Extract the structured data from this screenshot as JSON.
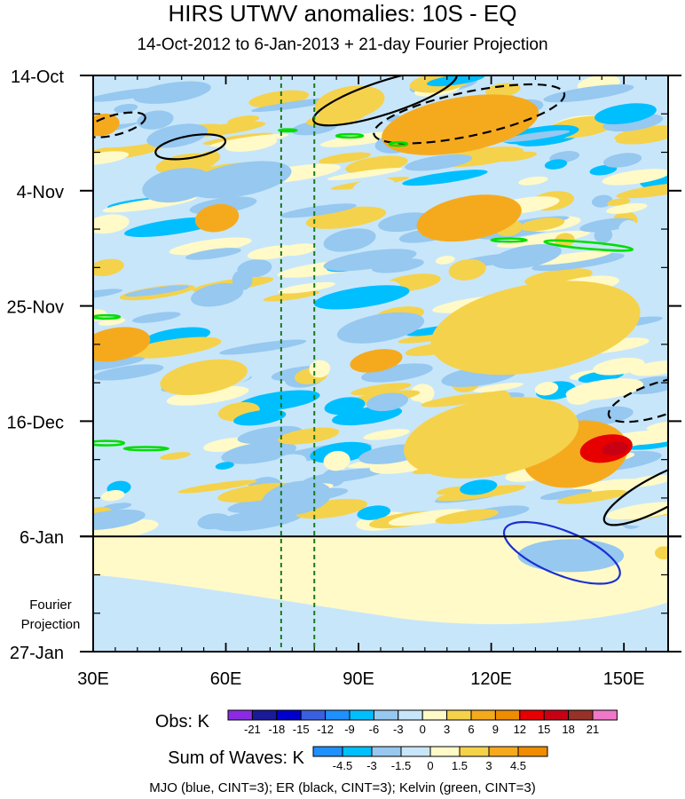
{
  "chart_data": {
    "type": "heatmap",
    "title": "HIRS UTWV anomalies: 10S - EQ",
    "subtitle": "14-Oct-2012 to 6-Jan-2013 + 21-day Fourier Projection",
    "xlabel": "",
    "ylabel": "",
    "x_axis": {
      "range": [
        30,
        160
      ],
      "ticks": [
        30,
        60,
        90,
        120,
        150
      ],
      "tick_labels": [
        "30E",
        "60E",
        "90E",
        "120E",
        "150E"
      ]
    },
    "y_axis": {
      "range_days": [
        0,
        105
      ],
      "ticks": [
        0,
        21,
        42,
        63,
        84,
        105
      ],
      "tick_labels": [
        "14-Oct",
        "4-Nov",
        "25-Nov",
        "16-Dec",
        "6-Jan",
        "27-Jan"
      ],
      "direction": "time increasing downward"
    },
    "observation_end_day": 84,
    "fourier_projection_label": [
      "Fourier",
      "Projection"
    ],
    "reference_longitudes": [
      72.5,
      80
    ],
    "obs_colorbar": {
      "label": "Obs: K",
      "levels": [
        "-21",
        "-18",
        "-15",
        "-12",
        "-9",
        "-6",
        "-3",
        "0",
        "3",
        "6",
        "9",
        "12",
        "15",
        "18",
        "21"
      ],
      "colors": [
        "#8a2be2",
        "#1a1a9a",
        "#0000cd",
        "#3a5fe0",
        "#1e90ff",
        "#00bfff",
        "#96c8f0",
        "#c8e6fa",
        "#fffac8",
        "#f5d24b",
        "#f5aa1e",
        "#f08c00",
        "#e60000",
        "#c80014",
        "#963228",
        "#f078c8"
      ]
    },
    "waves_colorbar": {
      "label": "Sum of Waves: K",
      "levels": [
        "-4.5",
        "-3",
        "-1.5",
        "0",
        "1.5",
        "3",
        "4.5"
      ],
      "colors": [
        "#1e90ff",
        "#00bfff",
        "#96c8f0",
        "#c8e6fa",
        "#fffac8",
        "#f5d24b",
        "#f5aa1e",
        "#f08c00"
      ]
    },
    "field_patches": [
      {
        "lon": 112,
        "day": 9.5,
        "rlon": 14,
        "rday": 3.5,
        "value": 12
      },
      {
        "lon": 107,
        "day": 9,
        "rlon": 7,
        "rday": 2,
        "value": 15
      },
      {
        "lon": 113,
        "day": 9,
        "rlon": 18,
        "rday": 5,
        "value": 6
      },
      {
        "lon": 115,
        "day": 26,
        "rlon": 12,
        "rday": 4,
        "value": 6
      },
      {
        "lon": 134,
        "day": 47,
        "rlon": 14,
        "rday": 5,
        "value": 6
      },
      {
        "lon": 128,
        "day": 44,
        "rlon": 7,
        "rday": 4,
        "value": 9
      },
      {
        "lon": 139,
        "day": 69,
        "rlon": 12,
        "rday": 6,
        "value": 6
      },
      {
        "lon": 146,
        "day": 68,
        "rlon": 6,
        "rday": 2.5,
        "value": 12
      },
      {
        "lon": 148,
        "day": 68,
        "rlon": 3,
        "rday": 1.2,
        "value": 15
      },
      {
        "lon": 35,
        "day": 49,
        "rlon": 8,
        "rday": 3,
        "value": 6
      },
      {
        "lon": 32,
        "day": 9,
        "rlon": 4,
        "rday": 2,
        "value": 6
      },
      {
        "lon": 58,
        "day": 26,
        "rlon": 5,
        "rday": 2.5,
        "value": 6
      },
      {
        "lon": 94,
        "day": 52,
        "rlon": 6,
        "rday": 2,
        "value": 6
      },
      {
        "lon": 49,
        "day": 20,
        "rlon": 8,
        "rday": 3,
        "value": -6
      },
      {
        "lon": 63,
        "day": 19,
        "rlon": 12,
        "rday": 3,
        "value": -6
      },
      {
        "lon": 49,
        "day": 11,
        "rlon": 7,
        "rday": 2,
        "value": -6
      },
      {
        "lon": 76,
        "day": 77,
        "rlon": 8,
        "rday": 3,
        "value": -6
      },
      {
        "lon": 95,
        "day": 46,
        "rlon": 10,
        "rday": 2.5,
        "value": -6
      },
      {
        "lon": 128,
        "day": 33,
        "rlon": 8,
        "rday": 2,
        "value": -6
      },
      {
        "lon": 88,
        "day": 30,
        "rlon": 6,
        "rday": 2,
        "value": -6
      },
      {
        "lon": 58,
        "day": 40,
        "rlon": 6,
        "rday": 2,
        "value": -6
      },
      {
        "lon": 33,
        "day": 35,
        "rlon": 4,
        "rday": 1.5,
        "value": 3
      },
      {
        "lon": 120,
        "day": 66,
        "rlon": 20,
        "rday": 7,
        "value": 3
      },
      {
        "lon": 130,
        "day": 46,
        "rlon": 24,
        "rday": 8,
        "value": 3
      },
      {
        "lon": 55,
        "day": 55,
        "rlon": 10,
        "rday": 3,
        "value": 3
      },
      {
        "lon": 88,
        "day": 5,
        "rlon": 8,
        "rday": 3,
        "value": 3
      }
    ],
    "wave_contours": [
      {
        "wave": "ER",
        "color": "black",
        "sign": "positive",
        "lon": 96,
        "day": 4,
        "rlon": 17,
        "rday": 3,
        "rotate": -18
      },
      {
        "wave": "ER",
        "color": "black",
        "sign": "positive",
        "lon": 52,
        "day": 13,
        "rlon": 8,
        "rday": 2,
        "rotate": -10
      },
      {
        "wave": "ER",
        "color": "black",
        "sign": "negative",
        "lon": 115,
        "day": 7,
        "rlon": 22,
        "rday": 4,
        "rotate": -12
      },
      {
        "wave": "ER",
        "color": "black",
        "sign": "negative",
        "lon": 35,
        "day": 9,
        "rlon": 7,
        "rday": 1.8,
        "rotate": -15
      },
      {
        "wave": "ER",
        "color": "black",
        "sign": "negative",
        "lon": 158,
        "day": 59,
        "rlon": 12,
        "rday": 3,
        "rotate": -18
      },
      {
        "wave": "ER",
        "color": "black",
        "sign": "positive",
        "lon": 158,
        "day": 76,
        "rlon": 14,
        "rday": 3,
        "rotate": -28
      },
      {
        "wave": "MJO",
        "color": "blue",
        "sign": "positive",
        "lon": 136,
        "day": 87,
        "rlon": 14,
        "rday": 4,
        "rotate": 22
      },
      {
        "wave": "Kelvin",
        "color": "green",
        "sign": "positive",
        "lon": 74,
        "day": 10,
        "rlon": 2,
        "rday": 0.2,
        "rotate": 0
      },
      {
        "wave": "Kelvin",
        "color": "green",
        "sign": "positive",
        "lon": 88,
        "day": 11,
        "rlon": 3,
        "rday": 0.3,
        "rotate": 0
      },
      {
        "wave": "Kelvin",
        "color": "green",
        "sign": "positive",
        "lon": 99,
        "day": 12.5,
        "rlon": 2,
        "rday": 0.3,
        "rotate": 0
      },
      {
        "wave": "Kelvin",
        "color": "green",
        "sign": "positive",
        "lon": 142,
        "day": 31,
        "rlon": 10,
        "rday": 0.6,
        "rotate": 5
      },
      {
        "wave": "Kelvin",
        "color": "green",
        "sign": "positive",
        "lon": 124,
        "day": 30,
        "rlon": 4,
        "rday": 0.3,
        "rotate": 0
      },
      {
        "wave": "Kelvin",
        "color": "green",
        "sign": "positive",
        "lon": 33,
        "day": 44,
        "rlon": 3,
        "rday": 0.3,
        "rotate": 0
      },
      {
        "wave": "Kelvin",
        "color": "green",
        "sign": "positive",
        "lon": 33,
        "day": 67,
        "rlon": 4,
        "rday": 0.4,
        "rotate": 0
      },
      {
        "wave": "Kelvin",
        "color": "green",
        "sign": "positive",
        "lon": 42,
        "day": 68,
        "rlon": 5,
        "rday": 0.3,
        "rotate": 0
      }
    ]
  },
  "footer_note": "MJO (blue, CINT=3); ER (black, CINT=3); Kelvin (green, CINT=3)"
}
